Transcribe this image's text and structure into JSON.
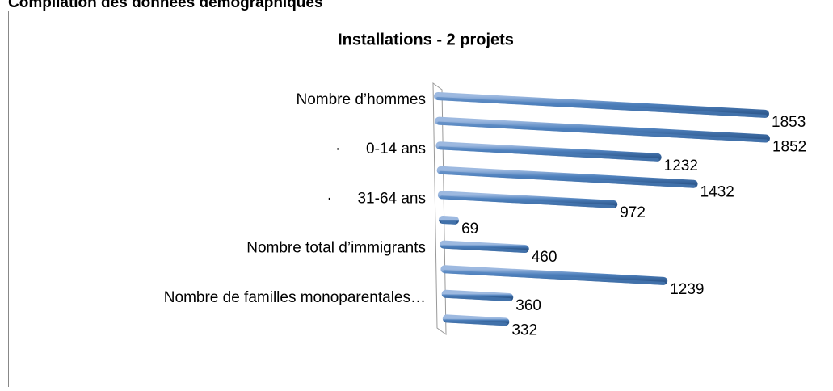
{
  "header": "Compilation des données démographiques",
  "chart_data": {
    "type": "bar",
    "orientation": "horizontal",
    "title": "Installations - 2 projets",
    "categories": [
      "Nombre d’hommes",
      null,
      "·      0-14 ans",
      null,
      "·      31-64 ans",
      null,
      "Nombre total d’immigrants",
      null,
      "Nombre de familles monoparentales…",
      null
    ],
    "values": [
      1853,
      1852,
      1232,
      1432,
      972,
      69,
      460,
      1239,
      360,
      332
    ],
    "color": "#4f81bd"
  }
}
